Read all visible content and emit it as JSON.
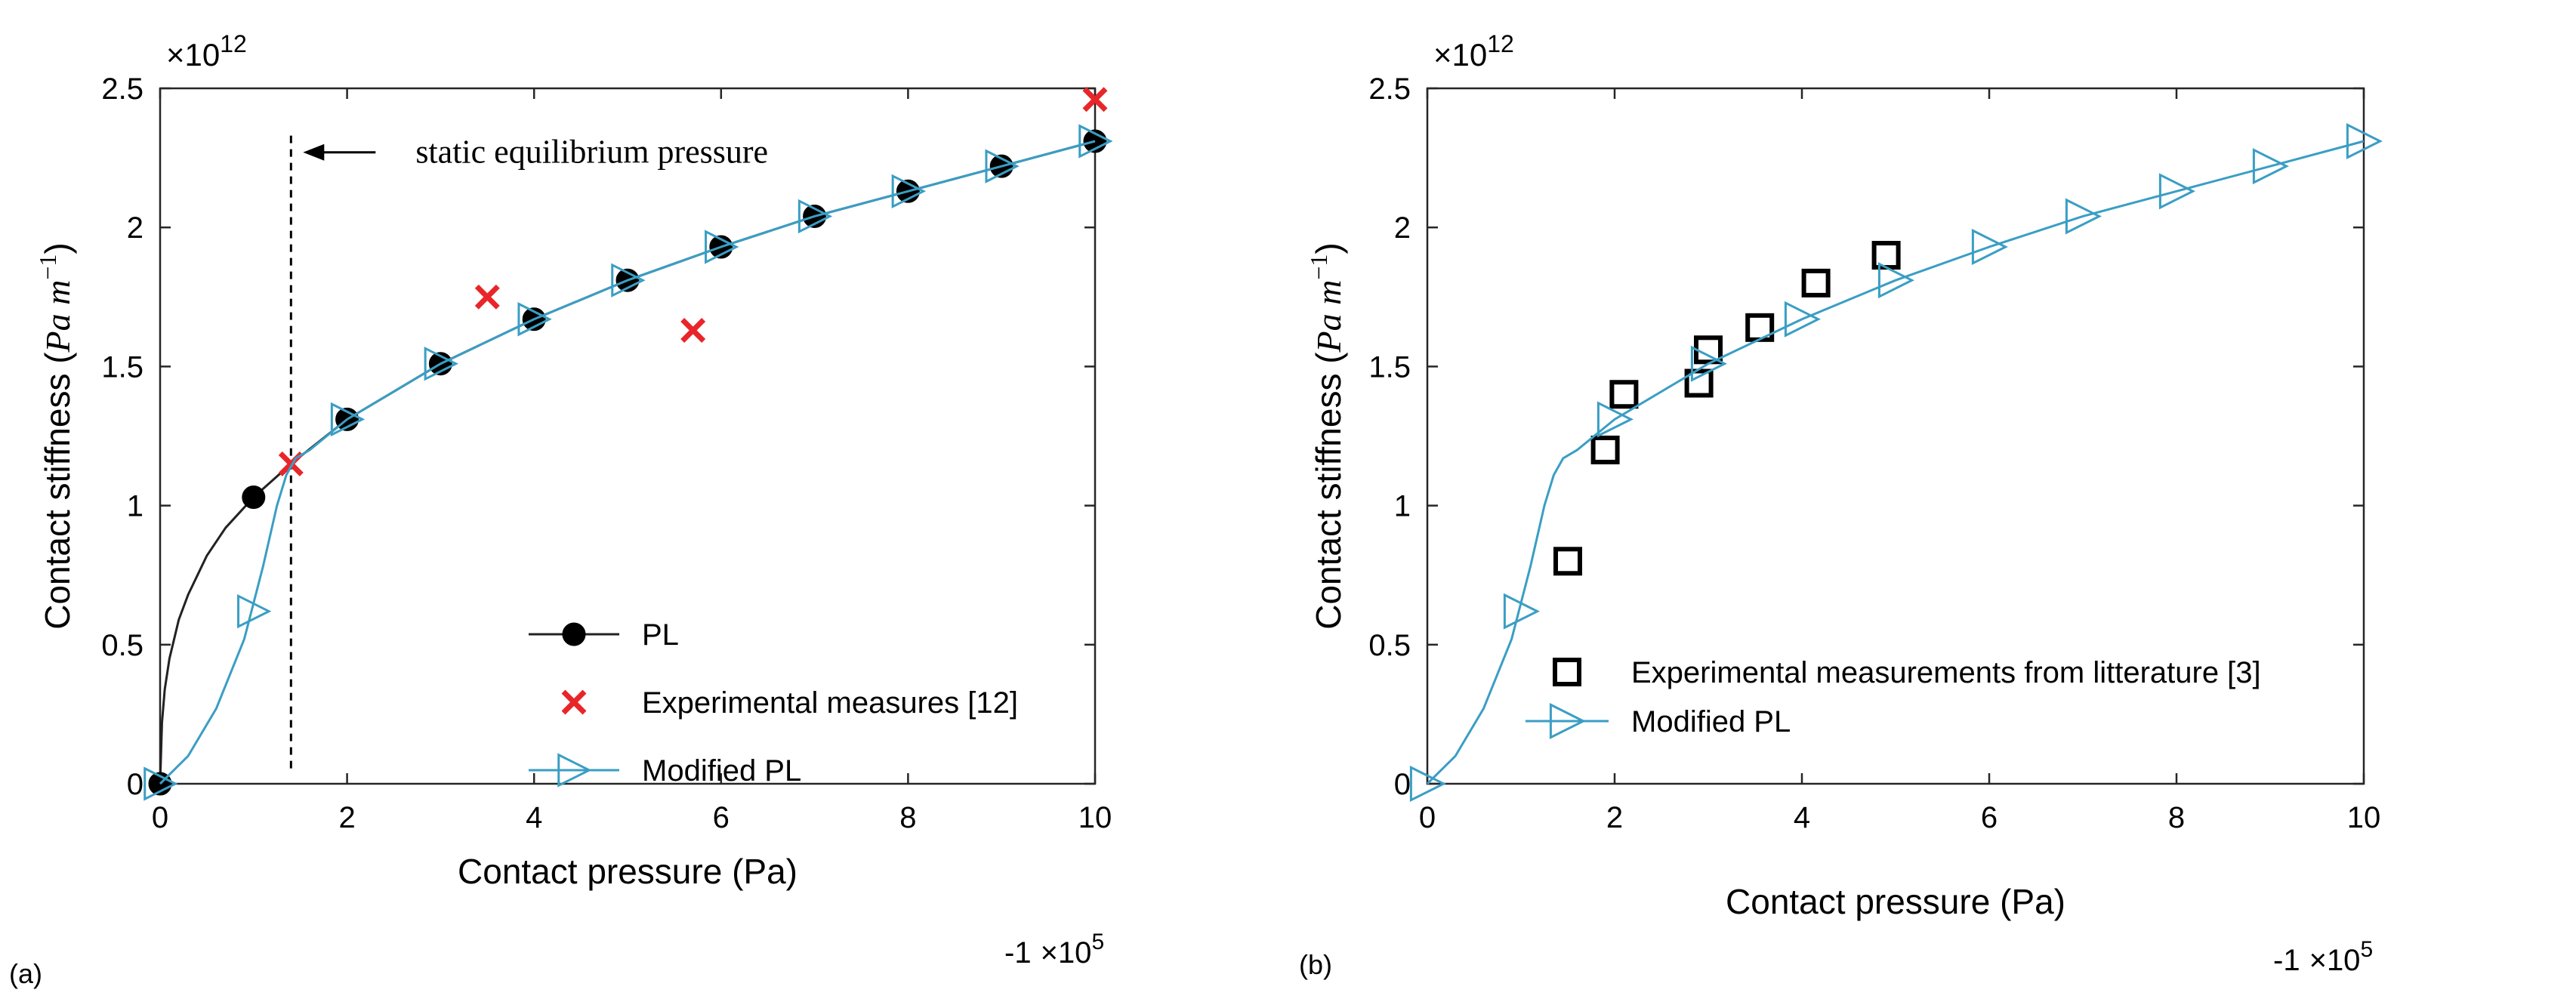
{
  "chart_data": [
    {
      "panel_label": "(a)",
      "type": "line",
      "xlabel": "Contact pressure (Pa)",
      "ylabel": "Contact stiffness (Pa m⁻¹)",
      "ylabel_parts": {
        "prefix": "Contact stiffness (",
        "unit_a": "Pa",
        "unit_b": " m",
        "exponent": "−1",
        "suffix": ")"
      },
      "x_multiplier": {
        "prefix": "-1",
        "base": "×10",
        "exp": "5"
      },
      "y_multiplier": {
        "base": "×10",
        "exp": "12"
      },
      "xlim": [
        0,
        10
      ],
      "ylim": [
        0,
        2.5
      ],
      "x_ticks": [
        0,
        2,
        4,
        6,
        8,
        10
      ],
      "x_tick_labels": [
        "0",
        "2",
        "4",
        "6",
        "8",
        "10"
      ],
      "y_ticks": [
        0,
        0.5,
        1,
        1.5,
        2,
        2.5
      ],
      "y_tick_labels": [
        "0",
        "0.5",
        "1",
        "1.5",
        "2",
        "2.5"
      ],
      "grid": false,
      "legend_position": "bottom-right",
      "annotation": {
        "text": "static equilibrium pressure",
        "x_line": 1.4
      },
      "series": [
        {
          "name": "PL",
          "role": "line-marker",
          "marker": "filled-circle",
          "color": "#222222",
          "x": [
            0,
            0.02,
            0.05,
            0.1,
            0.2,
            0.3,
            0.5,
            0.7,
            1,
            1.4,
            2,
            3,
            4,
            5,
            6,
            7,
            8,
            9,
            10
          ],
          "y": [
            0,
            0.22,
            0.34,
            0.45,
            0.59,
            0.68,
            0.82,
            0.92,
            1.03,
            1.15,
            1.31,
            1.51,
            1.67,
            1.81,
            1.93,
            2.04,
            2.13,
            2.22,
            2.31
          ],
          "marker_x": [
            0,
            1,
            2,
            3,
            4,
            5,
            6,
            7,
            8,
            9,
            10
          ],
          "marker_y": [
            0,
            1.03,
            1.31,
            1.51,
            1.67,
            1.81,
            1.93,
            2.04,
            2.13,
            2.22,
            2.31
          ]
        },
        {
          "name": "Experimental measures [12]",
          "role": "markers",
          "marker": "x",
          "color": "#e8262a",
          "x": [
            1.4,
            3.5,
            5.7,
            10.0
          ],
          "y": [
            1.15,
            1.75,
            1.63,
            2.46
          ]
        },
        {
          "name": "Modified PL",
          "role": "line-marker",
          "marker": "triangle-right",
          "color": "#3a9ec4",
          "x": [
            0,
            0.3,
            0.6,
            0.9,
            1.1,
            1.25,
            1.35,
            1.45,
            1.6,
            2,
            3,
            4,
            5,
            6,
            7,
            8,
            9,
            10
          ],
          "y": [
            0,
            0.1,
            0.27,
            0.52,
            0.78,
            1.0,
            1.11,
            1.17,
            1.2,
            1.31,
            1.51,
            1.67,
            1.81,
            1.93,
            2.04,
            2.13,
            2.22,
            2.31
          ],
          "marker_x": [
            0,
            1,
            2,
            3,
            4,
            5,
            6,
            7,
            8,
            9,
            10
          ],
          "marker_y": [
            0,
            0.62,
            1.31,
            1.51,
            1.67,
            1.81,
            1.93,
            2.04,
            2.13,
            2.22,
            2.31
          ]
        }
      ]
    },
    {
      "panel_label": "(b)",
      "type": "line",
      "xlabel": "Contact pressure (Pa)",
      "ylabel": "Contact stiffness (Pa m⁻¹)",
      "ylabel_parts": {
        "prefix": "Contact stiffness (",
        "unit_a": "Pa",
        "unit_b": " m",
        "exponent": "−1",
        "suffix": ")"
      },
      "x_multiplier": {
        "prefix": "-1",
        "base": "×10",
        "exp": "5"
      },
      "y_multiplier": {
        "base": "×10",
        "exp": "12"
      },
      "xlim": [
        0,
        10
      ],
      "ylim": [
        0,
        2.5
      ],
      "x_ticks": [
        0,
        2,
        4,
        6,
        8,
        10
      ],
      "x_tick_labels": [
        "0",
        "2",
        "4",
        "6",
        "8",
        "10"
      ],
      "y_ticks": [
        0,
        0.5,
        1,
        1.5,
        2,
        2.5
      ],
      "y_tick_labels": [
        "0",
        "0.5",
        "1",
        "1.5",
        "2",
        "2.5"
      ],
      "grid": false,
      "legend_position": "bottom-right",
      "series": [
        {
          "name": "Experimental measurements from litterature [3]",
          "role": "markers",
          "marker": "square",
          "color": "#000000",
          "x": [
            1.5,
            1.9,
            2.1,
            2.9,
            3.0,
            3.55,
            4.15,
            4.9
          ],
          "y": [
            0.8,
            1.2,
            1.4,
            1.44,
            1.56,
            1.64,
            1.8,
            1.9
          ]
        },
        {
          "name": "Modified PL",
          "role": "line-marker",
          "marker": "triangle-right",
          "color": "#3a9ec4",
          "x": [
            0,
            0.3,
            0.6,
            0.9,
            1.1,
            1.25,
            1.35,
            1.45,
            1.6,
            2,
            3,
            4,
            5,
            6,
            7,
            8,
            9,
            10
          ],
          "y": [
            0,
            0.1,
            0.27,
            0.52,
            0.78,
            1.0,
            1.11,
            1.17,
            1.2,
            1.31,
            1.51,
            1.67,
            1.81,
            1.93,
            2.04,
            2.13,
            2.22,
            2.31
          ],
          "marker_x": [
            0,
            1,
            2,
            3,
            4,
            5,
            6,
            7,
            8,
            9,
            10
          ],
          "marker_y": [
            0,
            0.62,
            1.31,
            1.51,
            1.67,
            1.81,
            1.93,
            2.04,
            2.13,
            2.22,
            2.31
          ]
        }
      ]
    }
  ]
}
